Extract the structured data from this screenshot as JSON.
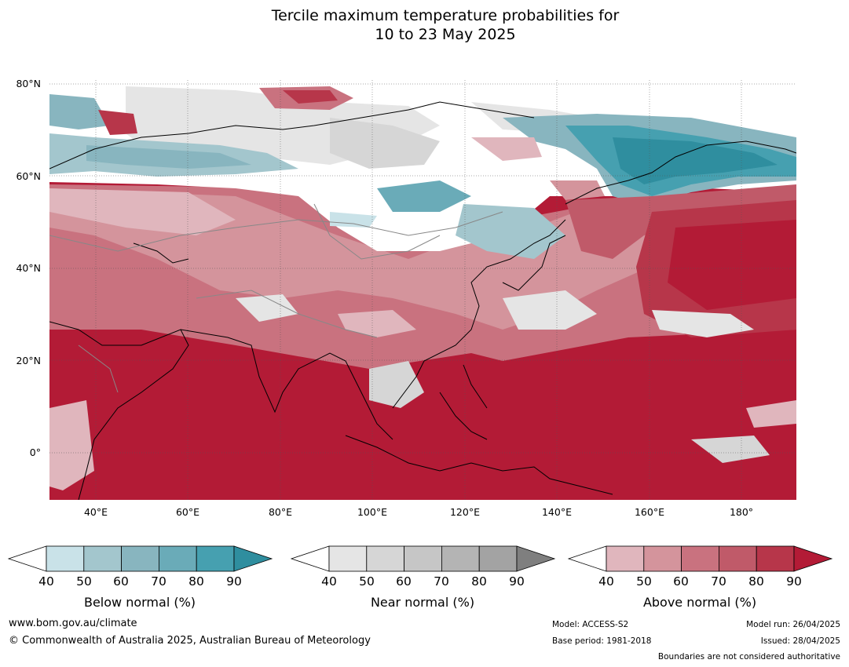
{
  "title_line1": "Tercile maximum temperature probabilities for",
  "title_line2": "10 to 23 May 2025",
  "lat_labels": [
    "80°N",
    "60°N",
    "40°N",
    "20°N",
    "0°"
  ],
  "lon_labels": [
    "40°E",
    "60°E",
    "80°E",
    "100°E",
    "120°E",
    "140°E",
    "160°E",
    "180°"
  ],
  "colorbars": [
    {
      "label": "Below normal (%)",
      "ticks": [
        "40",
        "50",
        "60",
        "70",
        "80",
        "90"
      ],
      "colors": [
        "#c9e2e8",
        "#a3c6cd",
        "#88b5bf",
        "#6aabb8",
        "#46a0b0",
        "#2f8e9f"
      ]
    },
    {
      "label": "Near normal (%)",
      "ticks": [
        "40",
        "50",
        "60",
        "70",
        "80",
        "90"
      ],
      "colors": [
        "#e5e5e5",
        "#d6d6d6",
        "#c6c6c6",
        "#b4b4b4",
        "#a3a3a3",
        "#7f7f7f"
      ]
    },
    {
      "label": "Above normal (%)",
      "ticks": [
        "40",
        "50",
        "60",
        "70",
        "80",
        "90"
      ],
      "colors": [
        "#e0b6bd",
        "#d4949c",
        "#c9727f",
        "#c05a69",
        "#b7364a",
        "#b31b36"
      ]
    }
  ],
  "footer": {
    "website": "www.bom.gov.au/climate",
    "copyright": "© Commonwealth of Australia 2025, Australian Bureau of Meteorology",
    "model": "Model: ACCESS-S2",
    "base_period": "Base period: 1981-2018",
    "model_run": "Model run: 26/04/2025",
    "issued": "Issued: 28/04/2025",
    "disclaimer": "Boundaries are not considered authoritative"
  }
}
